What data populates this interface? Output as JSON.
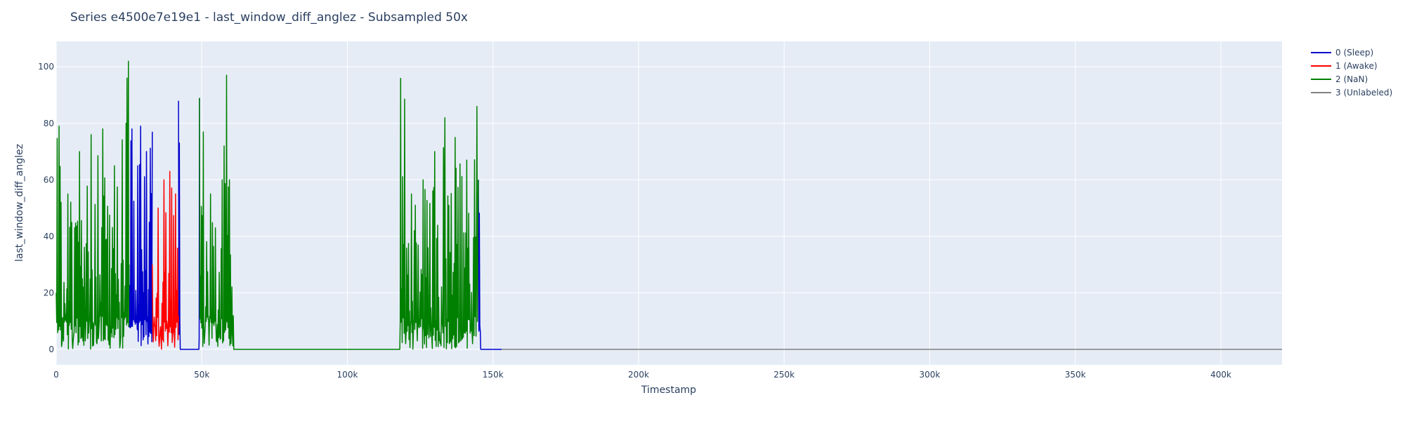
{
  "chart_data": {
    "type": "line",
    "title": "Series e4500e7e19e1 - last_window_diff_anglez - Subsampled 50x",
    "xlabel": "Timestamp",
    "ylabel": "last_window_diff_anglez",
    "xlim": [
      0,
      421000
    ],
    "ylim": [
      -5.5,
      109
    ],
    "grid": true,
    "legend_position": "top-right, outside plot",
    "plot_background": "#e5ecf6",
    "x_ticks": [
      {
        "value": 0,
        "label": "0"
      },
      {
        "value": 50000,
        "label": "50k"
      },
      {
        "value": 100000,
        "label": "100k"
      },
      {
        "value": 150000,
        "label": "150k"
      },
      {
        "value": 200000,
        "label": "200k"
      },
      {
        "value": 250000,
        "label": "250k"
      },
      {
        "value": 300000,
        "label": "300k"
      },
      {
        "value": 350000,
        "label": "350k"
      },
      {
        "value": 400000,
        "label": "400k"
      }
    ],
    "y_ticks": [
      {
        "value": 0,
        "label": "0"
      },
      {
        "value": 20,
        "label": "20"
      },
      {
        "value": 40,
        "label": "40"
      },
      {
        "value": 60,
        "label": "60"
      },
      {
        "value": 80,
        "label": "80"
      },
      {
        "value": 100,
        "label": "100"
      }
    ],
    "series": [
      {
        "name": "0 (Sleep)",
        "color": "#0000cc",
        "segments": [
          {
            "x": [
              25000,
              26000,
              27000,
              28000,
              29000,
              30000,
              31000,
              32000,
              33000
            ],
            "y": [
              30,
              78,
              10,
              65,
              79,
              20,
              70,
              45,
              77
            ]
          },
          {
            "x": [
              42000,
              42600,
              43000,
              48000,
              49000,
              49200
            ],
            "y": [
              88,
              0,
              0,
              0,
              0,
              89
            ]
          },
          {
            "x": [
              145000,
              145800,
              146200,
              147000,
              153000
            ],
            "y": [
              60,
              0,
              0,
              0,
              0
            ]
          }
        ]
      },
      {
        "name": "1 (Awake)",
        "color": "#ff0000",
        "segments": [
          {
            "x": [
              33000,
              34000,
              35000,
              36000,
              37000,
              38000,
              39000,
              40000,
              41000,
              42000
            ],
            "y": [
              30,
              8,
              50,
              4,
              60,
              10,
              63,
              5,
              55,
              12
            ]
          }
        ]
      },
      {
        "name": "2 (NaN)",
        "color": "#008000",
        "segments": [
          {
            "x": [
              0,
              1000,
              2000,
              4000,
              6000,
              8000,
              10000,
              12000,
              14000,
              16000,
              18000,
              20000,
              22000,
              24000,
              24800,
              25000
            ],
            "y": [
              20,
              79,
              2,
              55,
              5,
              70,
              3,
              76,
              2,
              78,
              4,
              65,
              2,
              80,
              102,
              30
            ]
          },
          {
            "x": [
              49200,
              51000,
              53000,
              55000,
              57000,
              58500,
              59500,
              60000,
              61000,
              118000,
              118300
            ],
            "y": [
              89,
              5,
              55,
              3,
              60,
              97,
              60,
              2,
              0,
              0,
              96
            ]
          },
          {
            "x": [
              118300,
              120000,
              122000,
              124000,
              126000,
              128000,
              130000,
              132000,
              133500,
              135000,
              137000,
              139000,
              141000,
              143000,
              144500,
              145000
            ],
            "y": [
              96,
              2,
              55,
              3,
              60,
              4,
              70,
              3,
              82,
              2,
              75,
              3,
              67,
              2,
              86,
              60
            ]
          }
        ]
      },
      {
        "name": "3 (Unlabeled)",
        "color": "#808080",
        "segments": [
          {
            "x": [
              153000,
              421000
            ],
            "y": [
              0,
              0
            ]
          }
        ]
      }
    ]
  }
}
